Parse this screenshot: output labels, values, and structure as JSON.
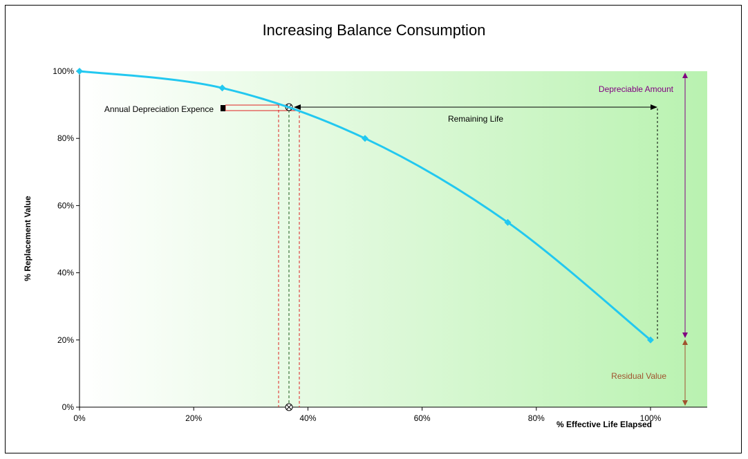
{
  "chart_data": {
    "type": "line",
    "title": "Increasing Balance Consumption",
    "xlabel": "% Effective Life Elapsed",
    "ylabel": "% Replacement Value",
    "xlim": [
      0,
      110
    ],
    "ylim": [
      0,
      100
    ],
    "x_ticks": [
      "0%",
      "20%",
      "40%",
      "60%",
      "80%",
      "100%"
    ],
    "y_ticks": [
      "0%",
      "20%",
      "40%",
      "60%",
      "80%",
      "100%"
    ],
    "grid": false,
    "series": [
      {
        "values": [
          {
            "x": 0,
            "y": 100
          },
          {
            "x": 25,
            "y": 95
          },
          {
            "x": 50,
            "y": 80
          },
          {
            "x": 75,
            "y": 55
          },
          {
            "x": 100,
            "y": 20
          }
        ]
      }
    ],
    "annotations": {
      "annual_depreciation": "Annual Depreciation Expence",
      "remaining_life": "Remaining Life",
      "depreciable_amount": "Depreciable Amount",
      "residual_value": "Residual Value"
    },
    "colors": {
      "line": "#22c8f0",
      "depreciable_arrow": "#800080",
      "residual_arrow": "#a0522d",
      "guide_red": "#e02020",
      "plot_bg_left": "#ffffff",
      "plot_bg_right": "#b9f2b0"
    }
  }
}
